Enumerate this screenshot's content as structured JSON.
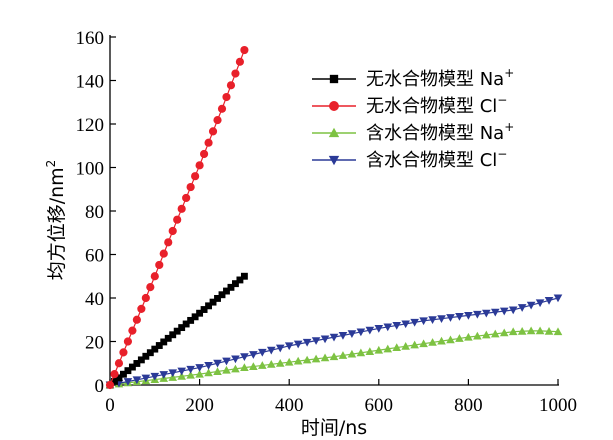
{
  "chart_data": {
    "type": "scatter",
    "xlabel": "时间/ns",
    "ylabel": "均方位移/nm",
    "ylabel_sup": "2",
    "xlim": [
      0,
      1000
    ],
    "ylim": [
      0,
      160
    ],
    "xticks": [
      0,
      200,
      400,
      600,
      800,
      1000
    ],
    "yticks": [
      0,
      20,
      40,
      60,
      80,
      100,
      120,
      140,
      160
    ],
    "grid": false,
    "legend_position": "upper-right",
    "series": [
      {
        "name": "无水合物模型 Na",
        "ion_sup": "+",
        "marker": "square",
        "color": "#000000",
        "x_start": 0,
        "x_end": 300,
        "step": 10,
        "y_at": [
          [
            0,
            0
          ],
          [
            100,
            16.5
          ],
          [
            200,
            33
          ],
          [
            300,
            50
          ]
        ]
      },
      {
        "name": "无水合物模型 Cl",
        "ion_sup": "−",
        "marker": "circle",
        "color": "#e8202a",
        "x_start": 0,
        "x_end": 300,
        "step": 10,
        "y_at": [
          [
            0,
            0
          ],
          [
            50,
            25
          ],
          [
            100,
            50
          ],
          [
            150,
            76
          ],
          [
            200,
            101
          ],
          [
            250,
            127
          ],
          [
            300,
            154
          ]
        ]
      },
      {
        "name": "含水合物模型 Na",
        "ion_sup": "+",
        "marker": "triangle-up",
        "color": "#7dc242",
        "x_start": 0,
        "x_end": 1000,
        "step": 20,
        "y_at": [
          [
            0,
            0
          ],
          [
            100,
            2.5
          ],
          [
            200,
            5
          ],
          [
            300,
            8
          ],
          [
            400,
            10.5
          ],
          [
            500,
            13
          ],
          [
            600,
            16
          ],
          [
            700,
            19
          ],
          [
            800,
            22
          ],
          [
            900,
            24.5
          ],
          [
            950,
            25
          ],
          [
            1000,
            24.5
          ]
        ]
      },
      {
        "name": "含水合物模型 Cl",
        "ion_sup": "−",
        "marker": "triangle-down",
        "color": "#2b3a97",
        "x_start": 0,
        "x_end": 1000,
        "step": 20,
        "y_at": [
          [
            0,
            0
          ],
          [
            100,
            4
          ],
          [
            200,
            8
          ],
          [
            300,
            13
          ],
          [
            400,
            18
          ],
          [
            500,
            22
          ],
          [
            600,
            26
          ],
          [
            700,
            29.5
          ],
          [
            800,
            32
          ],
          [
            900,
            34.5
          ],
          [
            1000,
            40
          ]
        ]
      }
    ]
  }
}
